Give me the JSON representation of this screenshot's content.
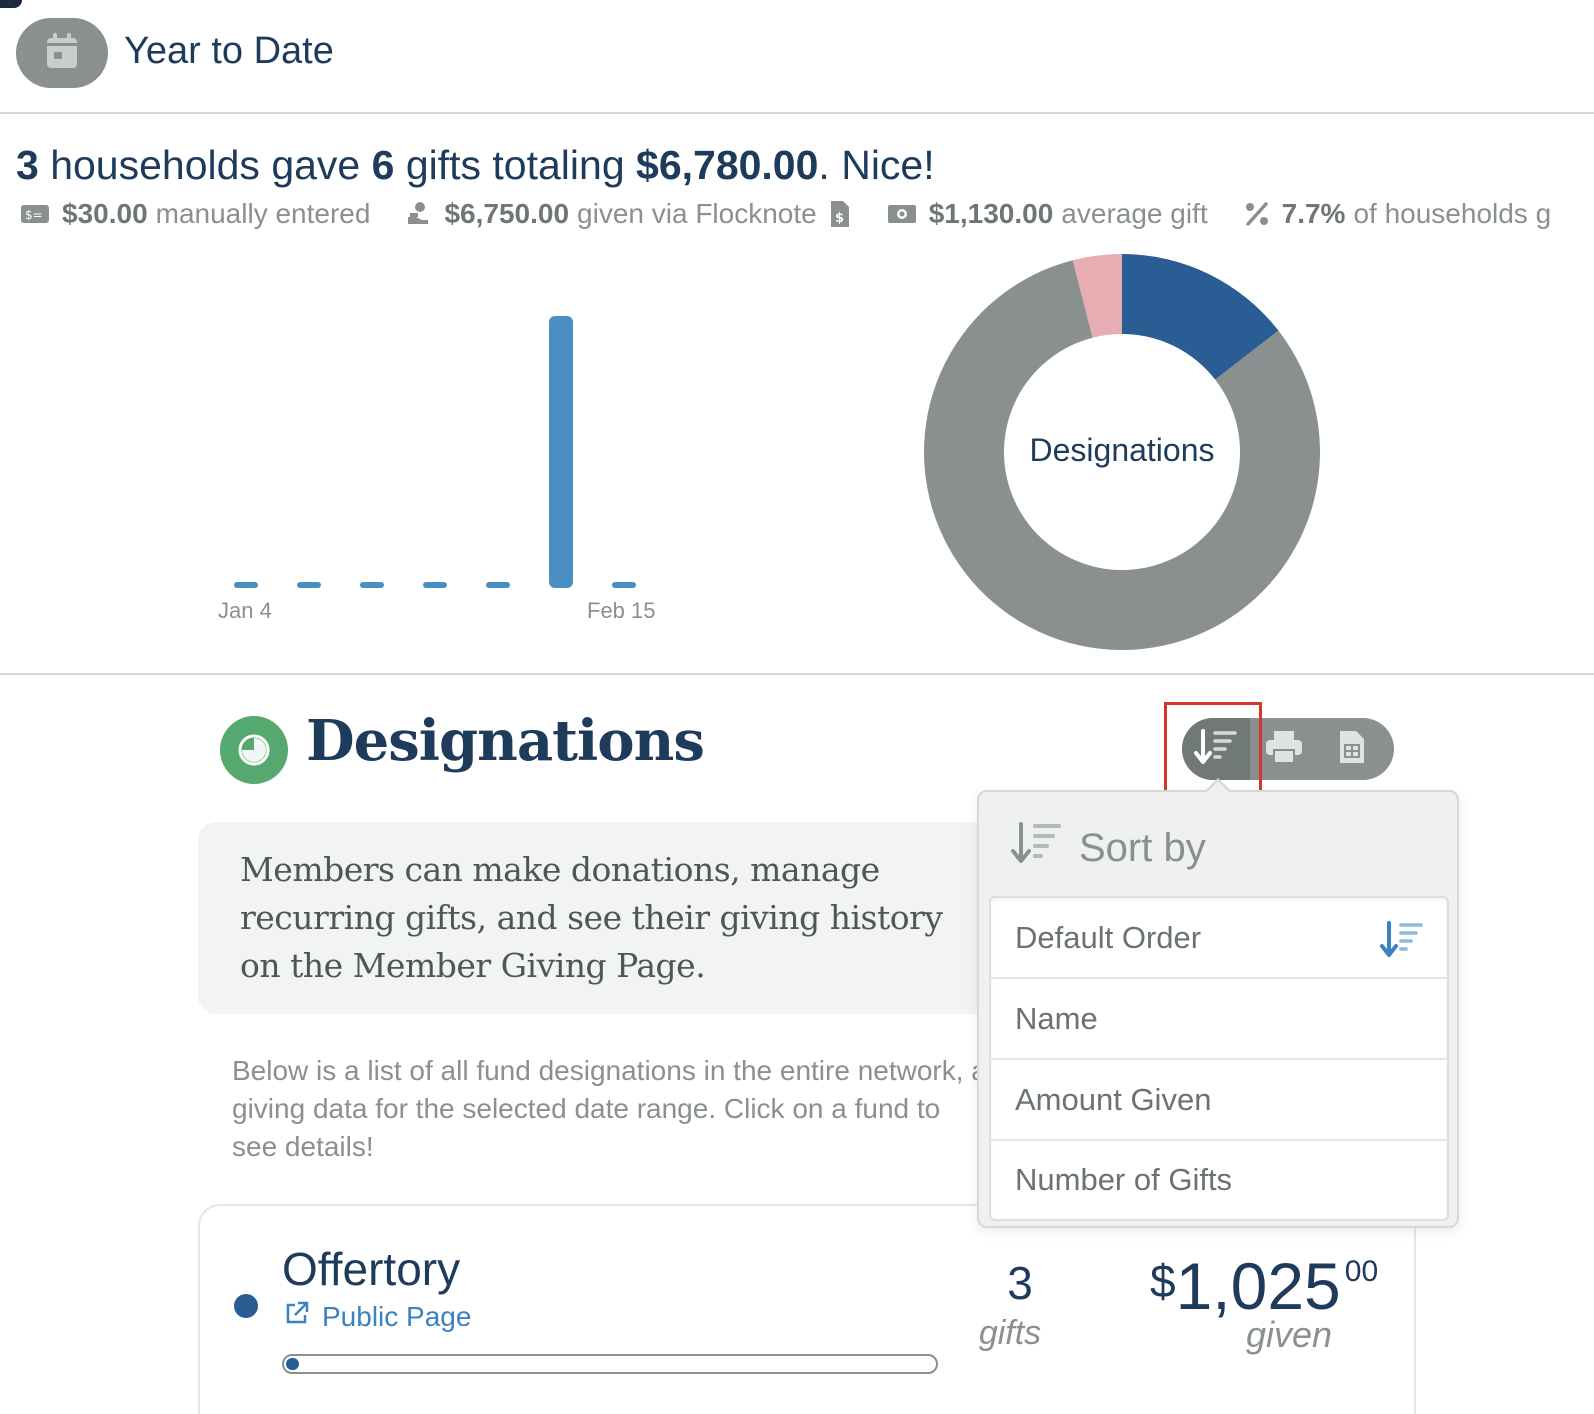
{
  "header": {
    "title": "Year to Date",
    "icon": "calendar-icon"
  },
  "summary": {
    "households": "3",
    "t1": " households gave ",
    "gifts": "6",
    "t2": " gifts totaling ",
    "total": "$6,780.00",
    "t3": ". Nice!"
  },
  "stats": [
    {
      "icon": "cash-icon",
      "value": "$30.00",
      "label": "manually entered"
    },
    {
      "icon": "hand-coin-icon",
      "value": "$6,750.00",
      "label": "given via Flocknote",
      "trailing_icon": "invoice-icon"
    },
    {
      "icon": "money-bill-icon",
      "value": "$1,130.00",
      "label": "average gift"
    },
    {
      "icon": "percent-icon",
      "value": "7.7%",
      "label": "of households g"
    }
  ],
  "chart_data": [
    {
      "type": "bar",
      "categories": [
        "Jan 4",
        "",
        "",
        "",
        "",
        "",
        "Feb 15"
      ],
      "values": [
        0,
        0,
        0,
        0,
        0,
        6750,
        0
      ],
      "tick_labels": [
        "Jan 4",
        "Feb 15"
      ],
      "color": "#4a8fc4",
      "grid": false
    },
    {
      "type": "pie",
      "center_label": "Designations",
      "values": [
        14.5,
        81.5,
        4.0
      ],
      "colors": [
        "#2a5d94",
        "#8a9090",
        "#e8adb2"
      ]
    }
  ],
  "designations": {
    "title": "Designations",
    "description": "Members can make donations, manage recurring gifts, and see their giving history on the Member Giving Page.",
    "below_text": "Below is a list of all fund designations in the entire network, a giving data for the selected date range. Click on a fund to see details!",
    "toolbar": {
      "sort_icon": "sort-icon",
      "print_icon": "print-icon",
      "export_icon": "spreadsheet-icon"
    }
  },
  "sort_menu": {
    "title": "Sort by",
    "options": [
      {
        "label": "Default Order",
        "selected": true
      },
      {
        "label": "Name",
        "selected": false
      },
      {
        "label": "Amount Given",
        "selected": false
      },
      {
        "label": "Number of Gifts",
        "selected": false
      }
    ]
  },
  "fund": {
    "name": "Offertory",
    "public_link": "Public Page",
    "progress": 0.015,
    "gifts_count": "3",
    "gifts_label": "gifts",
    "amount_currency": "$",
    "amount_whole": "1,025",
    "amount_cents": "00",
    "given_label": "given"
  },
  "colors": {
    "navy": "#1f3b5c",
    "gray": "#8a9090",
    "blue": "#4a8fc4",
    "green": "#55a86e",
    "highlight": "#d0392b"
  }
}
